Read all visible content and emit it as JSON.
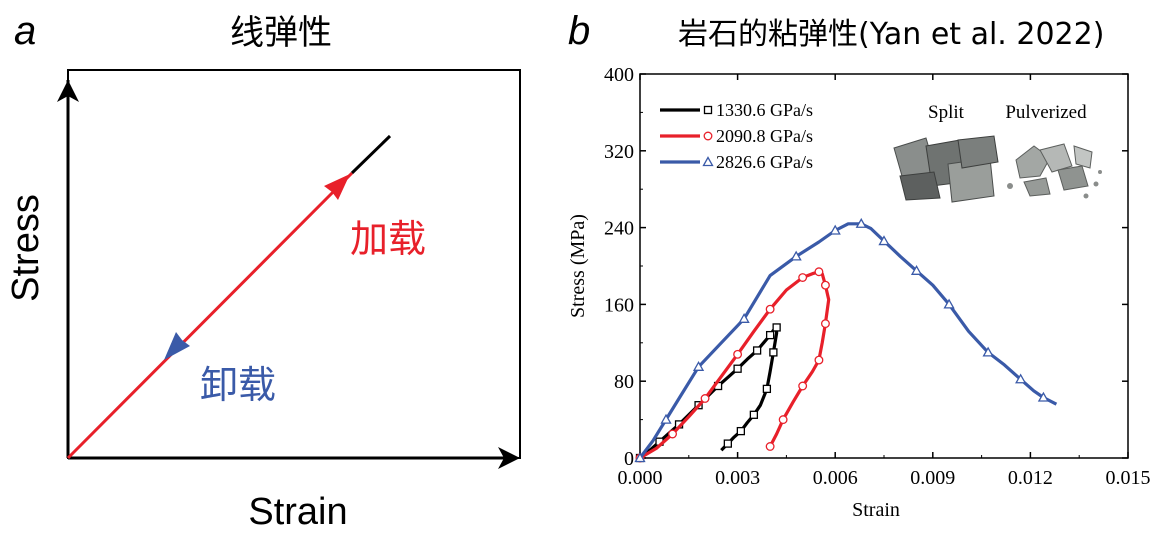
{
  "colors": {
    "axis": "#000000",
    "red": "#e8202a",
    "blue": "#3a5aa8",
    "black": "#000000"
  },
  "panel_a": {
    "letter": "a",
    "title": "线弹性",
    "xlabel": "Strain",
    "ylabel": "Stress",
    "load_label": "加载",
    "unload_label": "卸载"
  },
  "panel_b": {
    "letter": "b",
    "title": "岩石的粘弹性(Yan et al. 2022)",
    "photo_labels": [
      "Split",
      "Pulverized"
    ]
  },
  "chart_data": [
    {
      "type": "line",
      "title": "线弹性",
      "xlabel": "Strain",
      "ylabel": "Stress",
      "description_series": [
        {
          "name": "加载",
          "color": "#e8202a"
        },
        {
          "name": "卸载",
          "color": "#3a5aa8"
        }
      ]
    },
    {
      "type": "line",
      "title": "岩石的粘弹性(Yan et al. 2022)",
      "xlabel": "Strain",
      "ylabel": "Stress (MPa)",
      "xlim": [
        0.0,
        0.015
      ],
      "ylim": [
        0,
        400
      ],
      "xticks": [
        "0.000",
        "0.003",
        "0.006",
        "0.009",
        "0.012",
        "0.015"
      ],
      "yticks": [
        "0",
        "80",
        "160",
        "240",
        "320",
        "400"
      ],
      "legend_position": "top-left",
      "series": [
        {
          "name": "1330.6 GPa/s",
          "color": "#000000",
          "marker": "square",
          "x": [
            0.0,
            0.0003,
            0.0006,
            0.0009,
            0.0012,
            0.0015,
            0.0018,
            0.0021,
            0.0024,
            0.0027,
            0.003,
            0.0033,
            0.0036,
            0.0038,
            0.004,
            0.0041,
            0.0042,
            0.0042,
            0.0041,
            0.004,
            0.0039,
            0.0037,
            0.0035,
            0.0033,
            0.0031,
            0.0029,
            0.0027,
            0.0025
          ],
          "y": [
            0,
            8,
            17,
            26,
            35,
            45,
            55,
            65,
            75,
            84,
            93,
            103,
            112,
            120,
            128,
            133,
            136,
            130,
            110,
            90,
            72,
            55,
            45,
            37,
            28,
            22,
            15,
            8
          ]
        },
        {
          "name": "2090.8 GPa/s",
          "color": "#e8202a",
          "marker": "circle",
          "x": [
            0.0,
            0.0005,
            0.001,
            0.0015,
            0.002,
            0.0025,
            0.003,
            0.0035,
            0.004,
            0.0045,
            0.005,
            0.0053,
            0.0055,
            0.0056,
            0.0057,
            0.0058,
            0.0057,
            0.0056,
            0.0055,
            0.0053,
            0.005,
            0.0047,
            0.0044,
            0.0042,
            0.004
          ],
          "y": [
            0,
            10,
            25,
            43,
            62,
            85,
            108,
            132,
            155,
            175,
            188,
            192,
            194,
            192,
            180,
            165,
            140,
            120,
            102,
            90,
            75,
            58,
            40,
            25,
            12
          ]
        },
        {
          "name": "2826.6 GPa/s",
          "color": "#3a5aa8",
          "marker": "triangle",
          "x": [
            0.0,
            0.0004,
            0.0008,
            0.0012,
            0.0018,
            0.0025,
            0.0032,
            0.004,
            0.0048,
            0.0055,
            0.006,
            0.0064,
            0.0068,
            0.0071,
            0.0075,
            0.008,
            0.0085,
            0.009,
            0.0095,
            0.0101,
            0.0107,
            0.0112,
            0.0117,
            0.0121,
            0.0124,
            0.0128
          ],
          "y": [
            0,
            18,
            40,
            62,
            95,
            120,
            145,
            190,
            210,
            225,
            237,
            244,
            244,
            239,
            226,
            210,
            195,
            180,
            160,
            132,
            110,
            97,
            82,
            70,
            63,
            56
          ]
        }
      ]
    }
  ]
}
